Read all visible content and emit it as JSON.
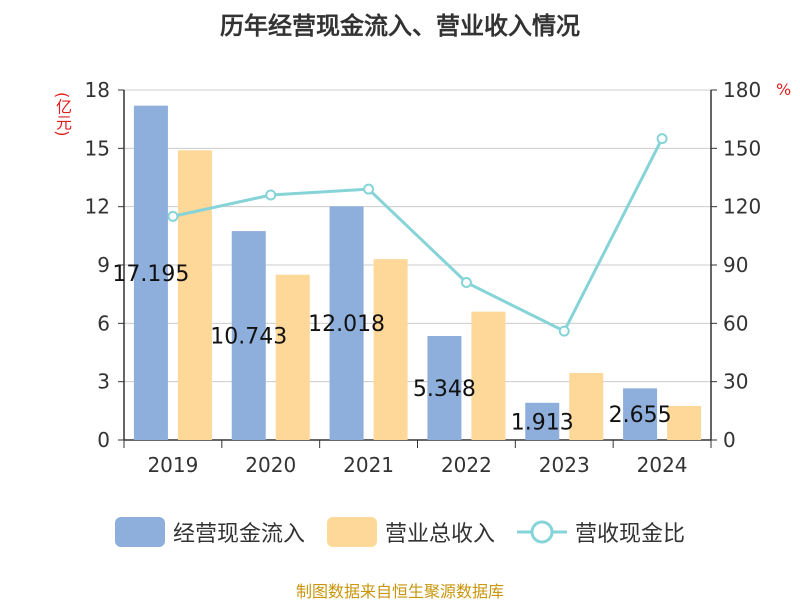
{
  "title": "历年经营现金流入、营业收入情况",
  "unit_left": "(亿元)",
  "unit_right": "%",
  "source": "制图数据来自恒生聚源数据库",
  "legend": [
    {
      "label": "经营现金流入",
      "color": "#8eaedc",
      "kind": "bar"
    },
    {
      "label": "营业总收入",
      "color": "#fdd898",
      "kind": "bar"
    },
    {
      "label": "营收现金比",
      "color": "#86d4d8",
      "kind": "line"
    }
  ],
  "chart_data": {
    "type": "bar",
    "title": "历年经营现金流入、营业收入情况",
    "categories": [
      "2019",
      "2020",
      "2021",
      "2022",
      "2023",
      "2024"
    ],
    "series": [
      {
        "name": "经营现金流入",
        "type": "bar",
        "axis": "left",
        "color": "#8eaedc",
        "values": [
          17.195,
          10.743,
          12.018,
          5.348,
          1.913,
          2.655
        ],
        "labels": [
          "17.195",
          "10.743",
          "12.018",
          "5.348",
          "1.913",
          "2.655"
        ]
      },
      {
        "name": "营业总收入",
        "type": "bar",
        "axis": "left",
        "color": "#fdd898",
        "values": [
          14.9,
          8.5,
          9.3,
          6.6,
          3.45,
          1.75
        ]
      },
      {
        "name": "营收现金比",
        "type": "line",
        "axis": "right",
        "color": "#86d4d8",
        "values": [
          115,
          126,
          129,
          81,
          56,
          155
        ]
      }
    ],
    "y_left": {
      "label": "(亿元)",
      "min": 0,
      "max": 18,
      "ticks": [
        0,
        3,
        6,
        9,
        12,
        15,
        18
      ]
    },
    "y_right": {
      "label": "%",
      "min": 0,
      "max": 180,
      "ticks": [
        0,
        30,
        60,
        90,
        120,
        150,
        180
      ]
    },
    "grid": true,
    "legend_position": "bottom"
  }
}
